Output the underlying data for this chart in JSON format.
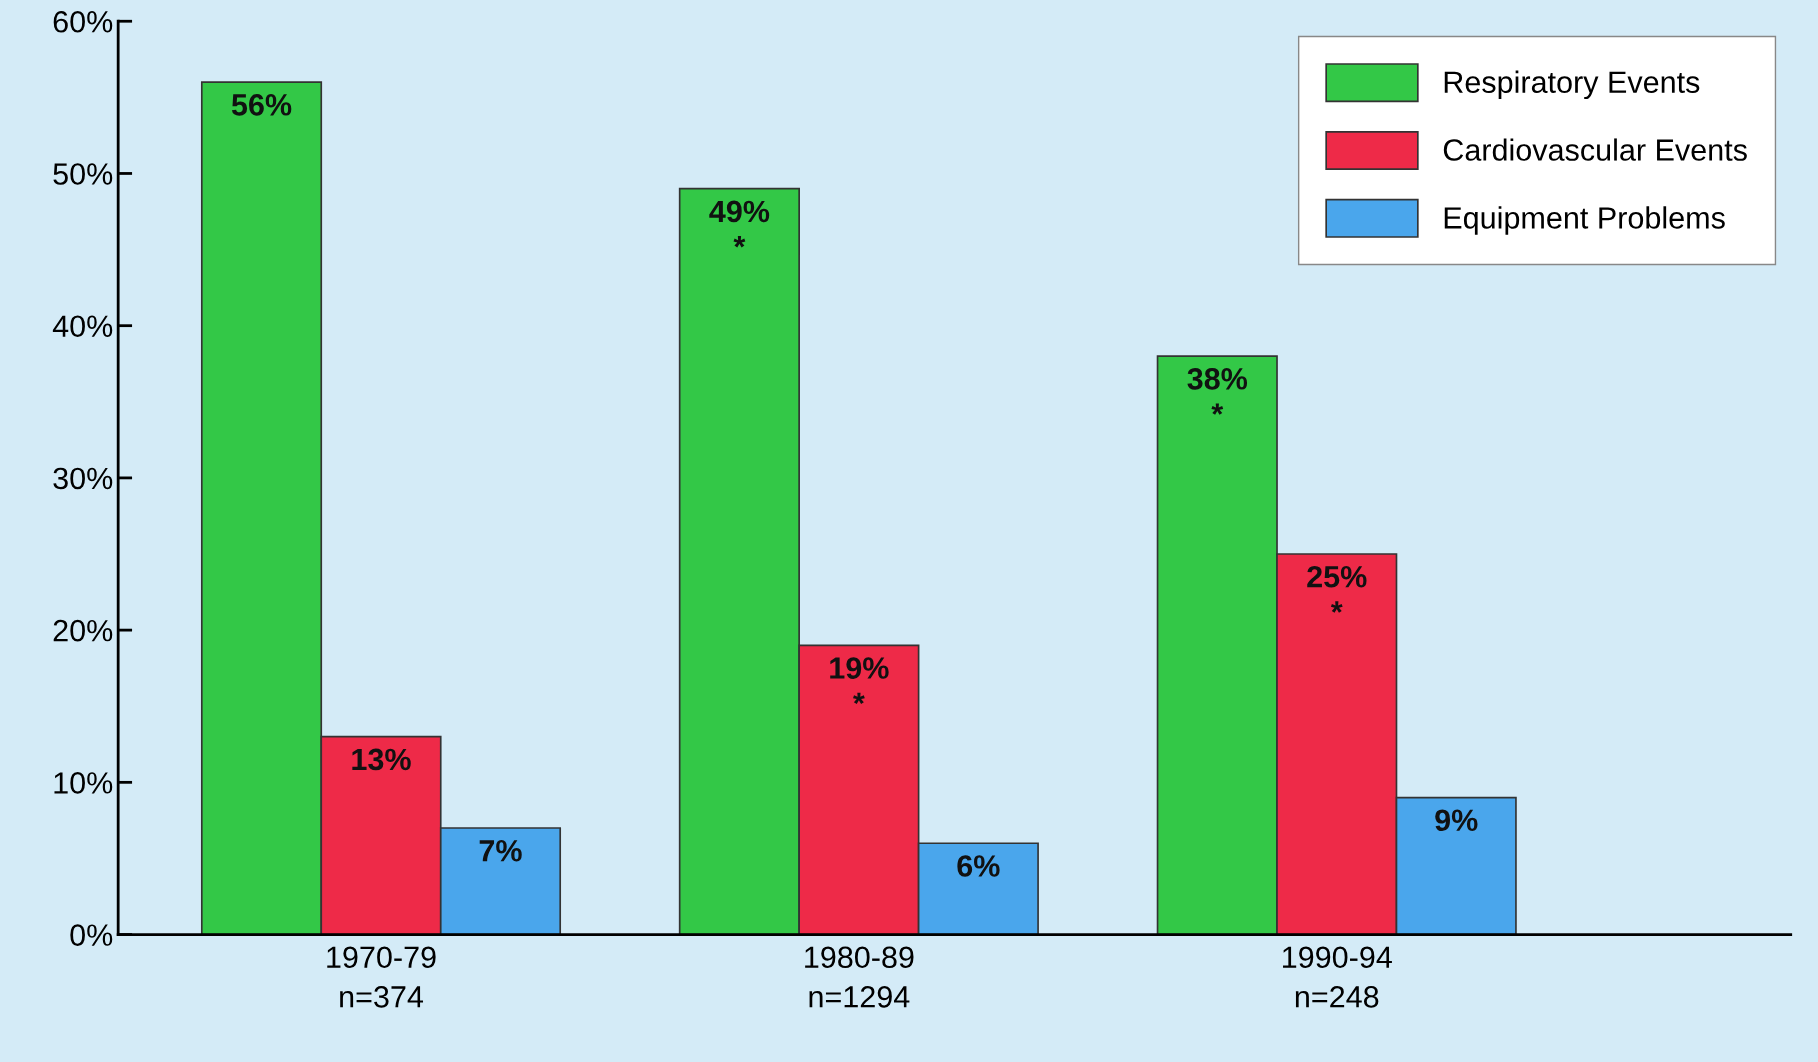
{
  "chart_data": {
    "type": "bar",
    "categories": [
      "1970-79\nn=374",
      "1980-89\nn=1294",
      "1990-94\nn=248"
    ],
    "series": [
      {
        "name": "Respiratory Events",
        "color": "#33c847",
        "values": [
          56,
          49,
          38
        ],
        "value_labels": [
          "56%",
          "49%\n*",
          "38%\n*"
        ]
      },
      {
        "name": "Cardiovascular Events",
        "color": "#ee2a48",
        "values": [
          13,
          19,
          25
        ],
        "value_labels": [
          "13%",
          "19%\n*",
          "25%\n*"
        ]
      },
      {
        "name": "Equipment Problems",
        "color": "#4aa6ec",
        "values": [
          7,
          6,
          9
        ],
        "value_labels": [
          "7%",
          "6%",
          "9%"
        ]
      }
    ],
    "ylim": [
      0,
      60
    ],
    "yticks": [
      {
        "value": 0,
        "label": "0%"
      },
      {
        "value": 10,
        "label": "10%"
      },
      {
        "value": 20,
        "label": "20%"
      },
      {
        "value": 30,
        "label": "30%"
      },
      {
        "value": 40,
        "label": "40%"
      },
      {
        "value": 50,
        "label": "50%"
      },
      {
        "value": 60,
        "label": "60%"
      }
    ],
    "grid": false,
    "legend": "top right"
  }
}
